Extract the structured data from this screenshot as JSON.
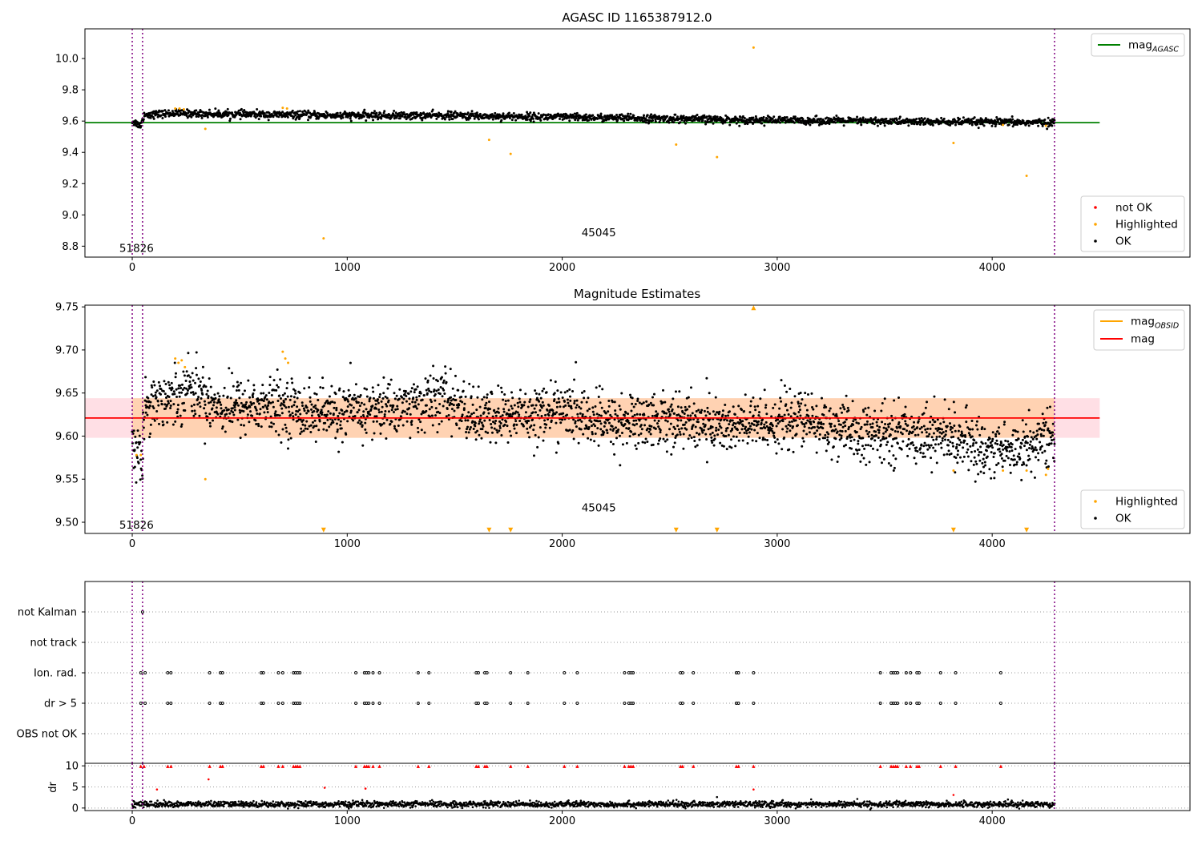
{
  "chart_data": [
    {
      "type": "scatter",
      "title": "AGASC ID 1165387912.0",
      "xlabel": "",
      "ylabel": "",
      "xlim": [
        -220,
        4920
      ],
      "ylim": [
        8.73,
        10.19
      ],
      "x_ticks": [
        "0",
        "1000",
        "2000",
        "3000",
        "4000"
      ],
      "y_ticks": [
        "8.8",
        "9.0",
        "9.2",
        "9.4",
        "9.6",
        "9.8",
        "10.0"
      ],
      "vlines": [
        0,
        48,
        4290
      ],
      "reference_line": {
        "name": "mag",
        "subscript": "AGASC",
        "y": 9.59,
        "x": [
          -220,
          4500
        ],
        "color": "#008000"
      },
      "legend_lines": [
        {
          "name": "mag",
          "subscript": "AGASC",
          "color": "#008000"
        }
      ],
      "legend_points": [
        {
          "name": "not OK",
          "color": "#ff0000"
        },
        {
          "name": "Highlighted",
          "color": "#ffa500"
        },
        {
          "name": "OK",
          "color": "#000000"
        }
      ],
      "annotations": [
        {
          "text": "51826",
          "x": 20,
          "y": 8.79
        },
        {
          "text": "45045",
          "x": 2170,
          "y": 8.89
        }
      ],
      "series": [
        {
          "name": "OK",
          "color": "#000000",
          "trend": [
            [
              0,
              9.6
            ],
            [
              40,
              9.57
            ],
            [
              55,
              9.64
            ],
            [
              200,
              9.65
            ],
            [
              400,
              9.645
            ],
            [
              1000,
              9.635
            ],
            [
              1500,
              9.635
            ],
            [
              2000,
              9.625
            ],
            [
              2500,
              9.615
            ],
            [
              3000,
              9.605
            ],
            [
              3400,
              9.6
            ],
            [
              3700,
              9.595
            ],
            [
              4290,
              9.59
            ]
          ],
          "spread": 0.012,
          "n": 2200
        },
        {
          "name": "Highlighted",
          "color": "#ffa500",
          "points": [
            [
              340,
              9.55
            ],
            [
              890,
              8.85
            ],
            [
              1660,
              9.48
            ],
            [
              1760,
              9.39
            ],
            [
              2530,
              9.45
            ],
            [
              2720,
              9.37
            ],
            [
              2890,
              10.07
            ],
            [
              3820,
              9.46
            ],
            [
              4160,
              9.25
            ],
            [
              200,
              9.68
            ],
            [
              220,
              9.68
            ],
            [
              240,
              9.675
            ],
            [
              700,
              9.685
            ],
            [
              720,
              9.68
            ],
            [
              4050,
              9.575
            ],
            [
              4250,
              9.57
            ]
          ]
        },
        {
          "name": "not OK",
          "color": "#ff0000",
          "points": []
        }
      ]
    },
    {
      "type": "scatter",
      "title": "Magnitude Estimates",
      "xlabel": "",
      "ylabel": "",
      "xlim": [
        -220,
        4920
      ],
      "ylim": [
        9.487,
        9.752
      ],
      "x_ticks": [
        "0",
        "1000",
        "2000",
        "3000",
        "4000"
      ],
      "y_ticks": [
        "9.50",
        "9.55",
        "9.60",
        "9.65",
        "9.70",
        "9.75"
      ],
      "vlines": [
        0,
        48,
        4290
      ],
      "mag": {
        "y": 9.621,
        "x": [
          -220,
          4500
        ],
        "color": "#ff0000"
      },
      "bands": [
        {
          "y": [
            9.598,
            9.644
          ],
          "x": [
            -220,
            4500
          ],
          "color": "#ffc0cb"
        },
        {
          "y": [
            9.598,
            9.644
          ],
          "x": [
            0,
            4290
          ],
          "color": "#ffa500"
        }
      ],
      "legend_lines": [
        {
          "name": "mag",
          "subscript": "OBSID",
          "color": "#ffa500"
        },
        {
          "name": "mag",
          "subscript": "",
          "color": "#ff0000"
        }
      ],
      "legend_points": [
        {
          "name": "Highlighted",
          "color": "#ffa500"
        },
        {
          "name": "OK",
          "color": "#000000"
        }
      ],
      "annotations": [
        {
          "text": "51826",
          "x": 20,
          "y": 9.497
        },
        {
          "text": "45045",
          "x": 2170,
          "y": 9.517
        }
      ],
      "series": [
        {
          "name": "OK",
          "color": "#000000",
          "trend": [
            [
              0,
              9.6
            ],
            [
              30,
              9.575
            ],
            [
              45,
              9.565
            ],
            [
              60,
              9.64
            ],
            [
              200,
              9.645
            ],
            [
              250,
              9.66
            ],
            [
              400,
              9.635
            ],
            [
              700,
              9.635
            ],
            [
              900,
              9.625
            ],
            [
              1300,
              9.635
            ],
            [
              1450,
              9.645
            ],
            [
              1600,
              9.62
            ],
            [
              2000,
              9.63
            ],
            [
              2200,
              9.615
            ],
            [
              2500,
              9.62
            ],
            [
              2800,
              9.61
            ],
            [
              3100,
              9.62
            ],
            [
              3400,
              9.6
            ],
            [
              3600,
              9.605
            ],
            [
              3800,
              9.6
            ],
            [
              3950,
              9.585
            ],
            [
              4100,
              9.585
            ],
            [
              4290,
              9.6
            ]
          ],
          "spread": 0.016,
          "n": 2600
        },
        {
          "name": "Highlighted",
          "color": "#ffa500",
          "points": [
            [
              200,
              9.69
            ],
            [
              215,
              9.685
            ],
            [
              230,
              9.688
            ],
            [
              245,
              9.68
            ],
            [
              340,
              9.55
            ],
            [
              700,
              9.698
            ],
            [
              712,
              9.69
            ],
            [
              725,
              9.685
            ],
            [
              3820,
              9.56
            ],
            [
              4050,
              9.56
            ],
            [
              4160,
              9.56
            ],
            [
              4250,
              9.555
            ],
            [
              4260,
              9.562
            ],
            [
              20,
              9.578
            ],
            [
              40,
              9.578
            ]
          ]
        },
        {
          "name": "Highlighted (below axis)",
          "color": "#ffa500",
          "marker": "triangle-down",
          "y": 9.491,
          "x": [
            890,
            1660,
            1760,
            2530,
            2720,
            3820,
            4160
          ]
        },
        {
          "name": "Highlighted (above axis)",
          "color": "#ffa500",
          "marker": "triangle-up",
          "y": 9.749,
          "x": [
            2890
          ]
        }
      ]
    },
    {
      "type": "scatter",
      "title": "",
      "xlabel": "",
      "ylabel": "",
      "xlim": [
        -220,
        4920
      ],
      "y_ticks": [
        "not Kalman",
        "not track",
        "Ion. rad.",
        "dr > 5",
        "OBS not OK"
      ],
      "vlines": [
        0,
        48,
        4290
      ],
      "flags": {
        "not Kalman": [
          48
        ],
        "not track": [],
        "Ion. rad.": [
          40,
          60,
          165,
          180,
          360,
          410,
          420,
          600,
          610,
          680,
          700,
          750,
          760,
          770,
          780,
          1040,
          1080,
          1090,
          1100,
          1120,
          1150,
          1330,
          1380,
          1600,
          1610,
          1640,
          1650,
          1760,
          1840,
          2010,
          2070,
          2290,
          2310,
          2320,
          2330,
          2550,
          2560,
          2610,
          2810,
          2820,
          2890,
          3480,
          3530,
          3540,
          3550,
          3560,
          3600,
          3620,
          3650,
          3660,
          3760,
          3830,
          4040
        ],
        "dr > 5": [
          40,
          60,
          165,
          180,
          360,
          410,
          420,
          600,
          610,
          680,
          700,
          750,
          760,
          770,
          780,
          1040,
          1080,
          1090,
          1100,
          1120,
          1150,
          1330,
          1380,
          1600,
          1610,
          1640,
          1650,
          1760,
          1840,
          2010,
          2070,
          2290,
          2310,
          2320,
          2330,
          2550,
          2560,
          2610,
          2810,
          2820,
          2890,
          3480,
          3530,
          3540,
          3550,
          3560,
          3600,
          3620,
          3650,
          3660,
          3760,
          3830,
          4040
        ],
        "OBS not OK": []
      }
    },
    {
      "type": "scatter",
      "title": "",
      "xlabel": "",
      "ylabel": "dr",
      "xlim": [
        -220,
        4920
      ],
      "ylim": [
        -0.6,
        10.6
      ],
      "x_ticks": [
        "0",
        "1000",
        "2000",
        "3000",
        "4000"
      ],
      "y_ticks": [
        "0",
        "5",
        "10"
      ],
      "vlines": [
        0,
        48,
        4290
      ],
      "series": [
        {
          "name": "OK",
          "color": "#000000",
          "trend": [
            [
              0,
              0.9
            ],
            [
              4290,
              0.9
            ]
          ],
          "spread": 0.35,
          "n": 2200
        },
        {
          "name": "not OK",
          "color": "#ff0000",
          "marker": "triangle-up",
          "y": 9.9,
          "x": [
            40,
            55,
            165,
            180,
            360,
            410,
            420,
            600,
            610,
            680,
            700,
            750,
            760,
            770,
            780,
            1040,
            1080,
            1090,
            1100,
            1120,
            1150,
            1330,
            1380,
            1600,
            1610,
            1640,
            1650,
            1760,
            1840,
            2010,
            2070,
            2290,
            2310,
            2320,
            2330,
            2550,
            2560,
            2610,
            2810,
            2820,
            2890,
            3480,
            3530,
            3540,
            3550,
            3560,
            3600,
            3620,
            3650,
            3660,
            3760,
            3830,
            4040
          ]
        },
        {
          "name": "not OK",
          "color": "#ff0000",
          "points": [
            [
              115,
              4.4
            ],
            [
              355,
              6.8
            ],
            [
              895,
              4.8
            ],
            [
              1085,
              4.6
            ],
            [
              2890,
              4.4
            ],
            [
              3820,
              3.1
            ]
          ]
        },
        {
          "name": "OK (outliers)",
          "color": "#000000",
          "points": [
            [
              2720,
              2.6
            ],
            [
              1070,
              1.9
            ]
          ]
        }
      ]
    }
  ]
}
